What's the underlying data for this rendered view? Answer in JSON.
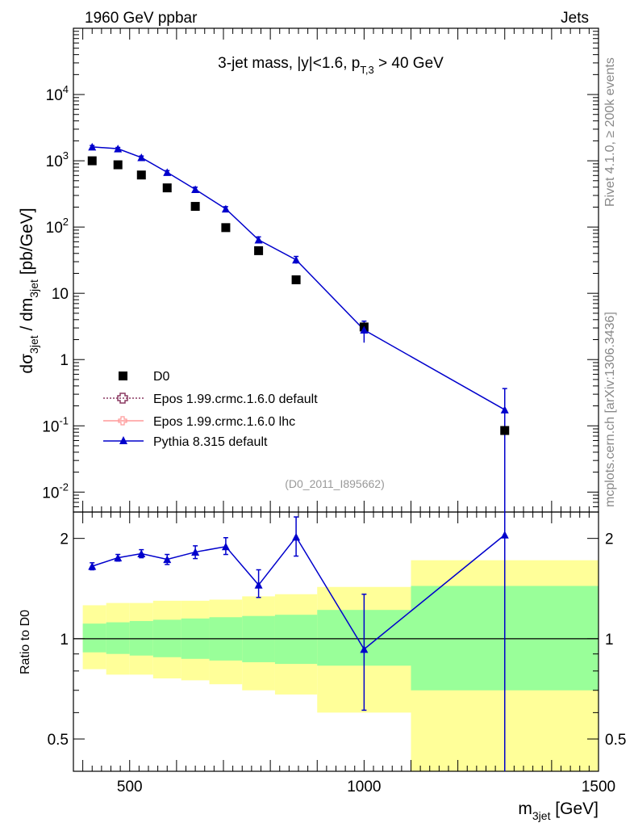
{
  "header": {
    "left": "1960 GeV ppbar",
    "right": "Jets"
  },
  "side_labels": {
    "rivet": "Rivet 4.1.0, ≥ 200k events",
    "mcplots": "mcplots.cern.ch [arXiv:1306.3436]"
  },
  "chart_data": [
    {
      "type": "scatter",
      "title": "3-jet mass, |y|<1.6, p_{T,3} > 40 GeV",
      "title_parts": {
        "main": "3-jet mass, |y|<1.6, p",
        "sub": "T,3",
        "tail": " > 40 GeV"
      },
      "xlabel": "m_3jet [GeV]",
      "ylabel": "dσ_3jet / dm_3jet [pb/GeV]",
      "yscale": "log",
      "xlim": [
        380,
        1500
      ],
      "ylim": [
        0.005,
        100000
      ],
      "y_tick_labels": [
        "10^{-2}",
        "10^{-1}",
        "1",
        "10",
        "10^{2}",
        "10^{3}",
        "10^{4}"
      ],
      "watermark": "(D0_2011_I895662)",
      "legend": [
        "D0",
        "Epos 1.99.crmc.1.6.0 default",
        "Epos 1.99.crmc.1.6.0 lhc",
        "Pythia 8.315 default"
      ],
      "legend_position": "middle-left",
      "series": [
        {
          "name": "D0",
          "marker": "square",
          "color": "#000000",
          "x": [
            420,
            475,
            525,
            580,
            640,
            705,
            775,
            855,
            1000,
            1300
          ],
          "y": [
            1000,
            870,
            610,
            390,
            205,
            98,
            44,
            16,
            3.1,
            0.085
          ]
        },
        {
          "name": "Pythia 8.315 default",
          "marker": "triangle",
          "color": "#0000cc",
          "x": [
            420,
            475,
            525,
            580,
            640,
            705,
            775,
            855,
            1000,
            1300
          ],
          "y": [
            1620,
            1520,
            1120,
            670,
            370,
            188,
            64,
            32,
            2.8,
            0.175
          ],
          "yerr_lo": [
            80,
            70,
            60,
            40,
            30,
            15,
            7,
            4,
            1.0,
            0.172
          ],
          "yerr_hi": [
            80,
            70,
            60,
            40,
            30,
            15,
            7,
            4,
            1.0,
            0.19
          ]
        }
      ]
    },
    {
      "type": "scatter",
      "title": "",
      "xlabel": "m_3jet [GeV]",
      "ylabel": "Ratio to D0",
      "yscale": "log",
      "xlim": [
        380,
        1500
      ],
      "ylim": [
        0.4,
        2.4
      ],
      "y_ticks": [
        0.5,
        1,
        2
      ],
      "y_tick_labels": [
        "0.5",
        "1",
        "2"
      ],
      "x_ticks": [
        500,
        1000,
        1500
      ],
      "x_tick_labels": [
        "500",
        "1000",
        "1500"
      ],
      "bands": {
        "bins": [
          [
            400,
            450
          ],
          [
            450,
            500
          ],
          [
            500,
            550
          ],
          [
            550,
            610
          ],
          [
            610,
            670
          ],
          [
            670,
            740
          ],
          [
            740,
            810
          ],
          [
            810,
            900
          ],
          [
            900,
            1100
          ],
          [
            1100,
            1500
          ]
        ],
        "total_lo": [
          0.81,
          0.78,
          0.78,
          0.76,
          0.75,
          0.73,
          0.7,
          0.68,
          0.6,
          0.35
        ],
        "total_hi": [
          1.26,
          1.28,
          1.28,
          1.3,
          1.3,
          1.31,
          1.34,
          1.36,
          1.43,
          1.72
        ],
        "stat_lo": [
          0.91,
          0.9,
          0.89,
          0.88,
          0.87,
          0.86,
          0.85,
          0.84,
          0.83,
          0.7
        ],
        "stat_hi": [
          1.11,
          1.12,
          1.13,
          1.14,
          1.15,
          1.16,
          1.17,
          1.18,
          1.22,
          1.44
        ],
        "total_color": "#ffff99",
        "stat_color": "#99ff99"
      },
      "series": [
        {
          "name": "Pythia 8.315 default",
          "marker": "triangle",
          "color": "#0000cc",
          "x": [
            420,
            475,
            525,
            580,
            640,
            705,
            775,
            855,
            1000,
            1300
          ],
          "y": [
            1.65,
            1.75,
            1.8,
            1.73,
            1.82,
            1.89,
            1.45,
            2.02,
            0.93,
            2.05
          ],
          "yerr_lo": [
            0.04,
            0.04,
            0.05,
            0.06,
            0.08,
            0.1,
            0.12,
            0.25,
            0.32,
            1.7
          ],
          "yerr_hi": [
            0.04,
            0.04,
            0.05,
            0.06,
            0.08,
            0.12,
            0.16,
            0.3,
            0.43,
            1.6
          ]
        }
      ]
    }
  ]
}
